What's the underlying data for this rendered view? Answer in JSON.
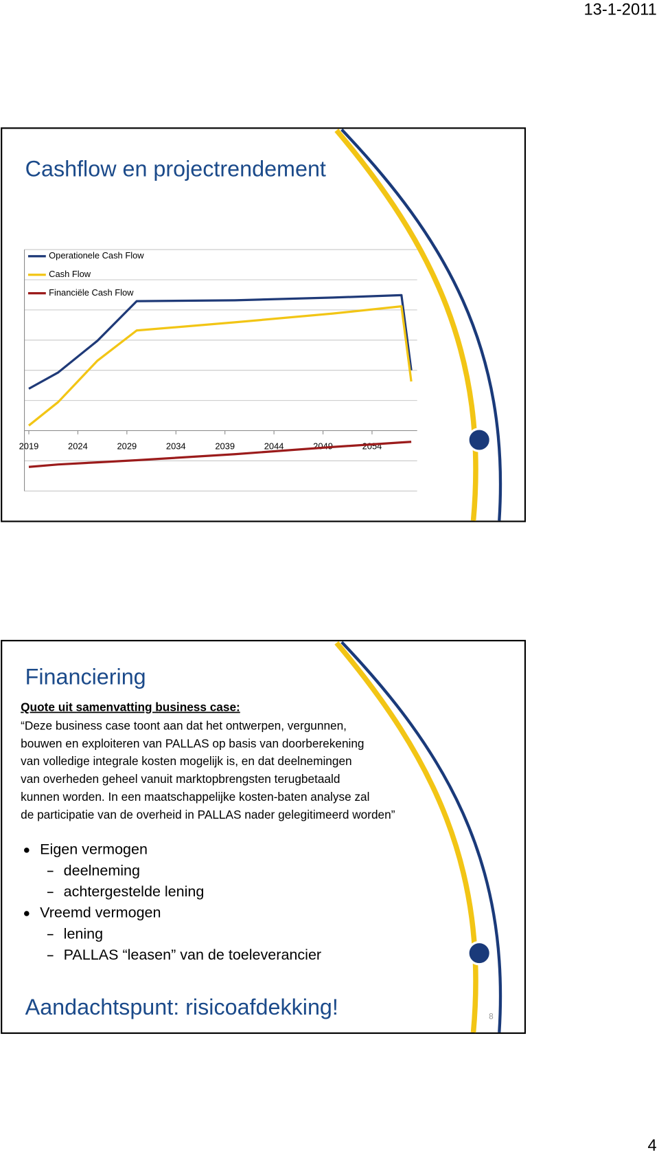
{
  "header": {
    "date": "13-1-2011"
  },
  "slides": [
    {
      "title": "Cashflow en projectrendement"
    },
    {
      "title": "Financiering",
      "quote_heading": "Quote uit samenvatting business case:",
      "quote_lines": [
        "“Deze business case toont aan dat het ontwerpen, vergunnen,",
        "bouwen en exploiteren van PALLAS op basis van doorberekening",
        "van volledige integrale kosten mogelijk is, en dat deelnemingen",
        "van overheden geheel vanuit marktopbrengsten terugbetaald",
        "kunnen worden. In een maatschappelijke kosten-baten analyse zal",
        "de participatie van de overheid in PALLAS nader gelegitimeerd worden”"
      ],
      "bullets": [
        {
          "text": "Eigen vermogen",
          "items": [
            "deelneming",
            "achtergestelde lening"
          ]
        },
        {
          "text": "Vreemd vermogen",
          "items": [
            "lening",
            "PALLAS “leasen” van de toeleverancier"
          ]
        }
      ],
      "footer": "Aandachtspunt: risicoafdekking!",
      "slide_number": 8
    }
  ],
  "chart_data": {
    "type": "line",
    "x": [
      2019,
      2022,
      2026,
      2030,
      2040,
      2050,
      2057,
      2058
    ],
    "series": [
      {
        "name": "Operationele Cash Flow",
        "color": "#1f3a78",
        "values": [
          1.39,
          1.93,
          2.98,
          4.29,
          4.32,
          4.41,
          4.49,
          2.0
        ]
      },
      {
        "name": "Cash Flow",
        "color": "#f2c515",
        "values": [
          0.17,
          0.95,
          2.32,
          3.32,
          3.59,
          3.88,
          4.12,
          1.63
        ]
      },
      {
        "name": "Financiële Cash Flow",
        "color": "#9b1b1b",
        "values": [
          -1.2,
          -1.12,
          -1.05,
          -0.98,
          -0.78,
          -0.54,
          -0.39,
          -0.37
        ]
      }
    ],
    "xlim": [
      2018.55,
      2058.6
    ],
    "xticks": [
      2019,
      2024,
      2029,
      2034,
      2039,
      2044,
      2049,
      2054
    ],
    "ylim": [
      -2,
      6
    ],
    "yticks": [
      -2,
      -1,
      0,
      1,
      2,
      3,
      4,
      5,
      6
    ],
    "grid": true
  },
  "page_number": 4
}
